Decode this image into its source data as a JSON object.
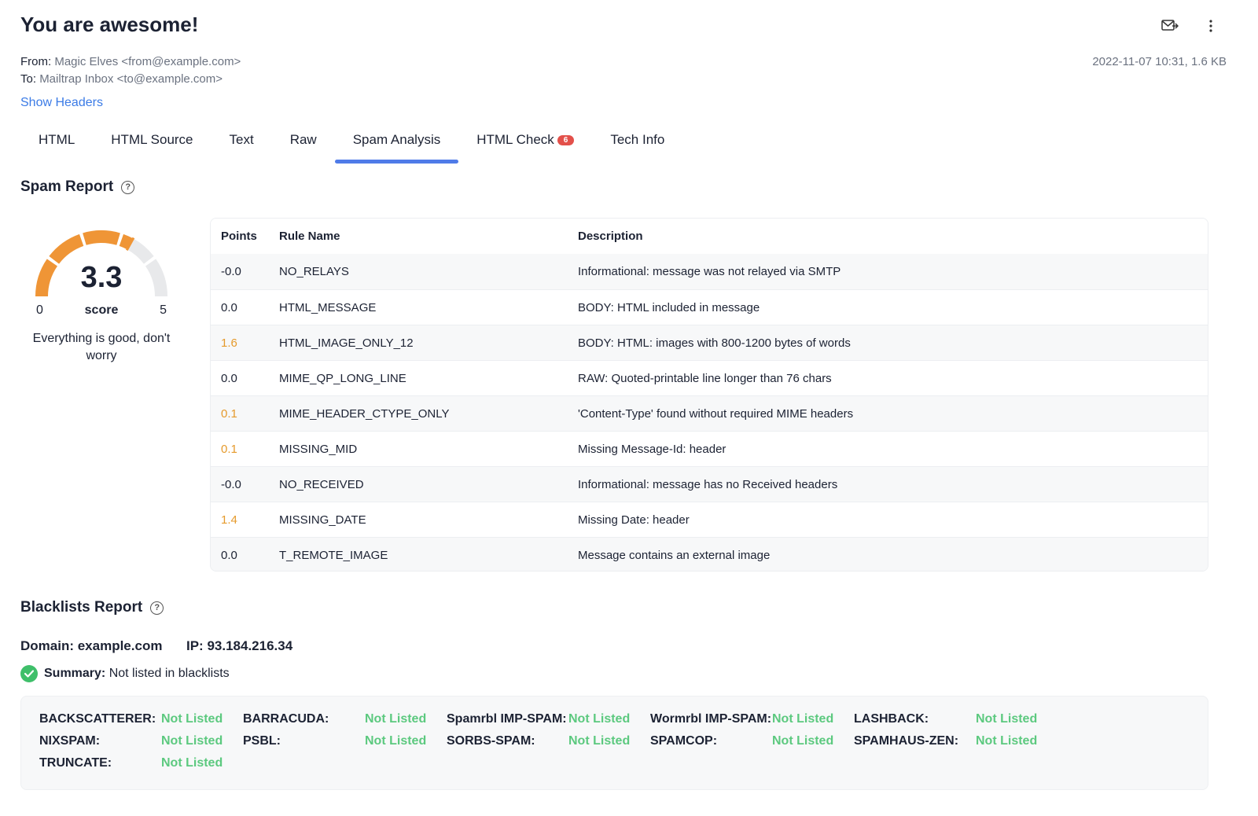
{
  "email": {
    "subject": "You are awesome!",
    "from_label": "From:",
    "from_value": "Magic Elves <from@example.com>",
    "to_label": "To:",
    "to_value": "Mailtrap Inbox <to@example.com>",
    "date_size": "2022-11-07 10:31, 1.6 KB",
    "show_headers": "Show Headers"
  },
  "tabs": [
    {
      "label": "HTML"
    },
    {
      "label": "HTML Source"
    },
    {
      "label": "Text"
    },
    {
      "label": "Raw"
    },
    {
      "label": "Spam Analysis",
      "active": true
    },
    {
      "label": "HTML Check",
      "badge": "6"
    },
    {
      "label": "Tech Info"
    }
  ],
  "spam_report": {
    "title": "Spam Report",
    "help": "?",
    "score": "3.3",
    "score_value": 3.3,
    "score_max": 5,
    "min_label": "0",
    "max_label": "5",
    "score_label": "score",
    "message": "Everything is good, don't worry",
    "gauge_color": "#ef9536",
    "gauge_track_color": "#e8e9eb",
    "columns": {
      "points": "Points",
      "rule": "Rule Name",
      "description": "Description"
    },
    "rows": [
      {
        "points": "-0.0",
        "rule": "NO_RELAYS",
        "description": "Informational: message was not relayed via SMTP",
        "warn": false
      },
      {
        "points": "0.0",
        "rule": "HTML_MESSAGE",
        "description": "BODY: HTML included in message",
        "warn": false
      },
      {
        "points": "1.6",
        "rule": "HTML_IMAGE_ONLY_12",
        "description": "BODY: HTML: images with 800-1200 bytes of words",
        "warn": true
      },
      {
        "points": "0.0",
        "rule": "MIME_QP_LONG_LINE",
        "description": "RAW: Quoted-printable line longer than 76 chars",
        "warn": false
      },
      {
        "points": "0.1",
        "rule": "MIME_HEADER_CTYPE_ONLY",
        "description": "'Content-Type' found without required MIME headers",
        "warn": true
      },
      {
        "points": "0.1",
        "rule": "MISSING_MID",
        "description": "Missing Message-Id: header",
        "warn": true
      },
      {
        "points": "-0.0",
        "rule": "NO_RECEIVED",
        "description": "Informational: message has no Received headers",
        "warn": false
      },
      {
        "points": "1.4",
        "rule": "MISSING_DATE",
        "description": "Missing Date: header",
        "warn": true
      },
      {
        "points": "0.0",
        "rule": "T_REMOTE_IMAGE",
        "description": "Message contains an external image",
        "warn": false
      }
    ]
  },
  "blacklists": {
    "title": "Blacklists Report",
    "help": "?",
    "domain": "Domain: example.com",
    "ip": "IP: 93.184.216.34",
    "summary_label": "Summary:",
    "summary_value": " Not listed in blacklists",
    "items": [
      {
        "name": "BACKSCATTERER:",
        "status": "Not Listed"
      },
      {
        "name": "BARRACUDA:",
        "status": "Not Listed"
      },
      {
        "name": "Spamrbl IMP-SPAM:",
        "status": "Not Listed"
      },
      {
        "name": "Wormrbl IMP-SPAM:",
        "status": "Not Listed"
      },
      {
        "name": "LASHBACK:",
        "status": "Not Listed"
      },
      {
        "name": "NIXSPAM:",
        "status": "Not Listed"
      },
      {
        "name": "PSBL:",
        "status": "Not Listed"
      },
      {
        "name": "SORBS-SPAM:",
        "status": "Not Listed"
      },
      {
        "name": "SPAMCOP:",
        "status": "Not Listed"
      },
      {
        "name": "SPAMHAUS-ZEN:",
        "status": "Not Listed"
      },
      {
        "name": "TRUNCATE:",
        "status": "Not Listed"
      }
    ]
  },
  "icons": {
    "forward": "forward-mail-icon",
    "more": "more-vertical-icon",
    "check": "check-circle-icon",
    "help": "help-circle-icon"
  }
}
